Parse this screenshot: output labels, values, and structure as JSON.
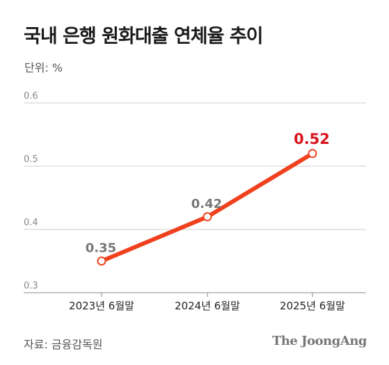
{
  "chart_data": {
    "type": "line",
    "title": "국내 은행 원화대출 연체율 추이",
    "unit_label": "단위: %",
    "categories": [
      "2023년 6월말",
      "2024년 6월말",
      "2025년 6월말"
    ],
    "series": [
      {
        "values": [
          0.35,
          0.42,
          0.52
        ]
      }
    ],
    "data_labels": [
      "0.35",
      "0.42",
      "0.52"
    ],
    "y_ticks": [
      "0.6",
      "0.5",
      "0.4",
      "0.3"
    ],
    "ylim": [
      0.3,
      0.6
    ],
    "grid": true,
    "source": "자료: 금융감독원",
    "colors": {
      "line": "#f0401e",
      "highlight_label": "#d8141e",
      "label": "#777777",
      "grid": "#cccccc"
    }
  },
  "branding": {
    "logo_text": "The JoongAng"
  }
}
